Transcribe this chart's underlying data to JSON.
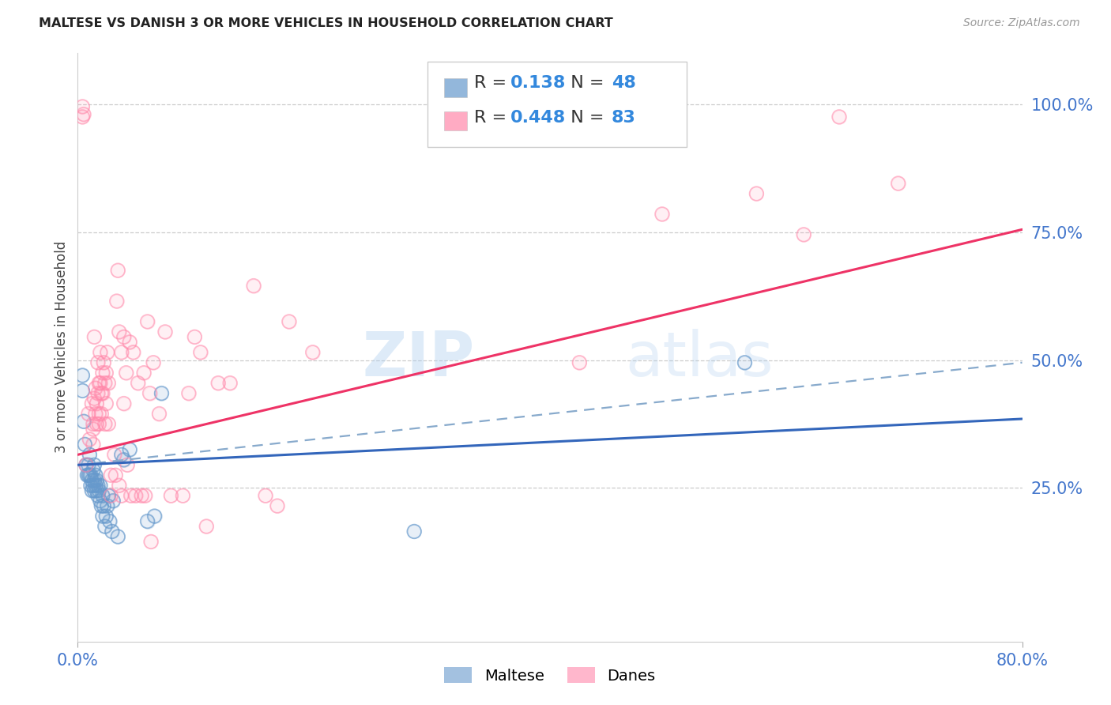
{
  "title": "MALTESE VS DANISH 3 OR MORE VEHICLES IN HOUSEHOLD CORRELATION CHART",
  "source": "Source: ZipAtlas.com",
  "ylabel": "3 or more Vehicles in Household",
  "ytick_labels": [
    "25.0%",
    "50.0%",
    "75.0%",
    "100.0%"
  ],
  "ytick_vals": [
    0.25,
    0.5,
    0.75,
    1.0
  ],
  "xtick_labels": [
    "0.0%",
    "80.0%"
  ],
  "xtick_vals": [
    0.0,
    0.8
  ],
  "xlim": [
    0.0,
    0.8
  ],
  "ylim": [
    -0.05,
    1.1
  ],
  "legend_r_blue": "0.138",
  "legend_n_blue": "48",
  "legend_r_pink": "0.448",
  "legend_n_pink": "83",
  "watermark": "ZIPatlas",
  "blue_color": "#6699CC",
  "pink_color": "#FF88AA",
  "blue_line_solid": [
    [
      0.0,
      0.295
    ],
    [
      0.8,
      0.385
    ]
  ],
  "blue_line_dashed": [
    [
      0.0,
      0.295
    ],
    [
      0.8,
      0.495
    ]
  ],
  "pink_line_solid": [
    [
      0.0,
      0.315
    ],
    [
      0.8,
      0.755
    ]
  ],
  "blue_scatter": [
    [
      0.004,
      0.47
    ],
    [
      0.004,
      0.44
    ],
    [
      0.005,
      0.38
    ],
    [
      0.006,
      0.335
    ],
    [
      0.007,
      0.295
    ],
    [
      0.008,
      0.275
    ],
    [
      0.009,
      0.295
    ],
    [
      0.009,
      0.275
    ],
    [
      0.01,
      0.315
    ],
    [
      0.01,
      0.275
    ],
    [
      0.011,
      0.255
    ],
    [
      0.011,
      0.275
    ],
    [
      0.012,
      0.265
    ],
    [
      0.012,
      0.245
    ],
    [
      0.013,
      0.255
    ],
    [
      0.013,
      0.285
    ],
    [
      0.014,
      0.295
    ],
    [
      0.014,
      0.265
    ],
    [
      0.014,
      0.245
    ],
    [
      0.015,
      0.275
    ],
    [
      0.015,
      0.255
    ],
    [
      0.016,
      0.265
    ],
    [
      0.016,
      0.245
    ],
    [
      0.017,
      0.255
    ],
    [
      0.017,
      0.235
    ],
    [
      0.018,
      0.245
    ],
    [
      0.019,
      0.225
    ],
    [
      0.019,
      0.255
    ],
    [
      0.02,
      0.215
    ],
    [
      0.021,
      0.195
    ],
    [
      0.021,
      0.235
    ],
    [
      0.022,
      0.215
    ],
    [
      0.023,
      0.175
    ],
    [
      0.024,
      0.195
    ],
    [
      0.025,
      0.215
    ],
    [
      0.026,
      0.235
    ],
    [
      0.027,
      0.185
    ],
    [
      0.029,
      0.165
    ],
    [
      0.03,
      0.225
    ],
    [
      0.034,
      0.155
    ],
    [
      0.037,
      0.315
    ],
    [
      0.039,
      0.305
    ],
    [
      0.044,
      0.325
    ],
    [
      0.059,
      0.185
    ],
    [
      0.065,
      0.195
    ],
    [
      0.071,
      0.435
    ],
    [
      0.285,
      0.165
    ],
    [
      0.565,
      0.495
    ]
  ],
  "pink_scatter": [
    [
      0.004,
      0.975
    ],
    [
      0.004,
      0.995
    ],
    [
      0.005,
      0.98
    ],
    [
      0.007,
      0.295
    ],
    [
      0.009,
      0.395
    ],
    [
      0.01,
      0.345
    ],
    [
      0.012,
      0.415
    ],
    [
      0.013,
      0.365
    ],
    [
      0.013,
      0.375
    ],
    [
      0.013,
      0.335
    ],
    [
      0.014,
      0.545
    ],
    [
      0.014,
      0.425
    ],
    [
      0.015,
      0.445
    ],
    [
      0.015,
      0.395
    ],
    [
      0.016,
      0.415
    ],
    [
      0.016,
      0.375
    ],
    [
      0.017,
      0.495
    ],
    [
      0.017,
      0.435
    ],
    [
      0.018,
      0.455
    ],
    [
      0.018,
      0.395
    ],
    [
      0.018,
      0.375
    ],
    [
      0.019,
      0.515
    ],
    [
      0.019,
      0.455
    ],
    [
      0.02,
      0.435
    ],
    [
      0.02,
      0.395
    ],
    [
      0.021,
      0.475
    ],
    [
      0.021,
      0.435
    ],
    [
      0.022,
      0.495
    ],
    [
      0.023,
      0.455
    ],
    [
      0.023,
      0.375
    ],
    [
      0.024,
      0.475
    ],
    [
      0.024,
      0.415
    ],
    [
      0.025,
      0.515
    ],
    [
      0.026,
      0.455
    ],
    [
      0.026,
      0.375
    ],
    [
      0.028,
      0.275
    ],
    [
      0.028,
      0.235
    ],
    [
      0.031,
      0.315
    ],
    [
      0.032,
      0.275
    ],
    [
      0.033,
      0.615
    ],
    [
      0.034,
      0.675
    ],
    [
      0.035,
      0.555
    ],
    [
      0.035,
      0.255
    ],
    [
      0.037,
      0.515
    ],
    [
      0.037,
      0.235
    ],
    [
      0.039,
      0.545
    ],
    [
      0.039,
      0.415
    ],
    [
      0.041,
      0.475
    ],
    [
      0.042,
      0.295
    ],
    [
      0.044,
      0.535
    ],
    [
      0.045,
      0.235
    ],
    [
      0.047,
      0.515
    ],
    [
      0.049,
      0.235
    ],
    [
      0.051,
      0.455
    ],
    [
      0.054,
      0.235
    ],
    [
      0.056,
      0.475
    ],
    [
      0.057,
      0.235
    ],
    [
      0.059,
      0.575
    ],
    [
      0.061,
      0.435
    ],
    [
      0.062,
      0.145
    ],
    [
      0.064,
      0.495
    ],
    [
      0.069,
      0.395
    ],
    [
      0.074,
      0.555
    ],
    [
      0.079,
      0.235
    ],
    [
      0.089,
      0.235
    ],
    [
      0.094,
      0.435
    ],
    [
      0.099,
      0.545
    ],
    [
      0.104,
      0.515
    ],
    [
      0.109,
      0.175
    ],
    [
      0.119,
      0.455
    ],
    [
      0.129,
      0.455
    ],
    [
      0.149,
      0.645
    ],
    [
      0.159,
      0.235
    ],
    [
      0.169,
      0.215
    ],
    [
      0.179,
      0.575
    ],
    [
      0.199,
      0.515
    ],
    [
      0.425,
      0.495
    ],
    [
      0.495,
      0.785
    ],
    [
      0.575,
      0.825
    ],
    [
      0.615,
      0.745
    ],
    [
      0.645,
      0.975
    ],
    [
      0.695,
      0.845
    ]
  ]
}
